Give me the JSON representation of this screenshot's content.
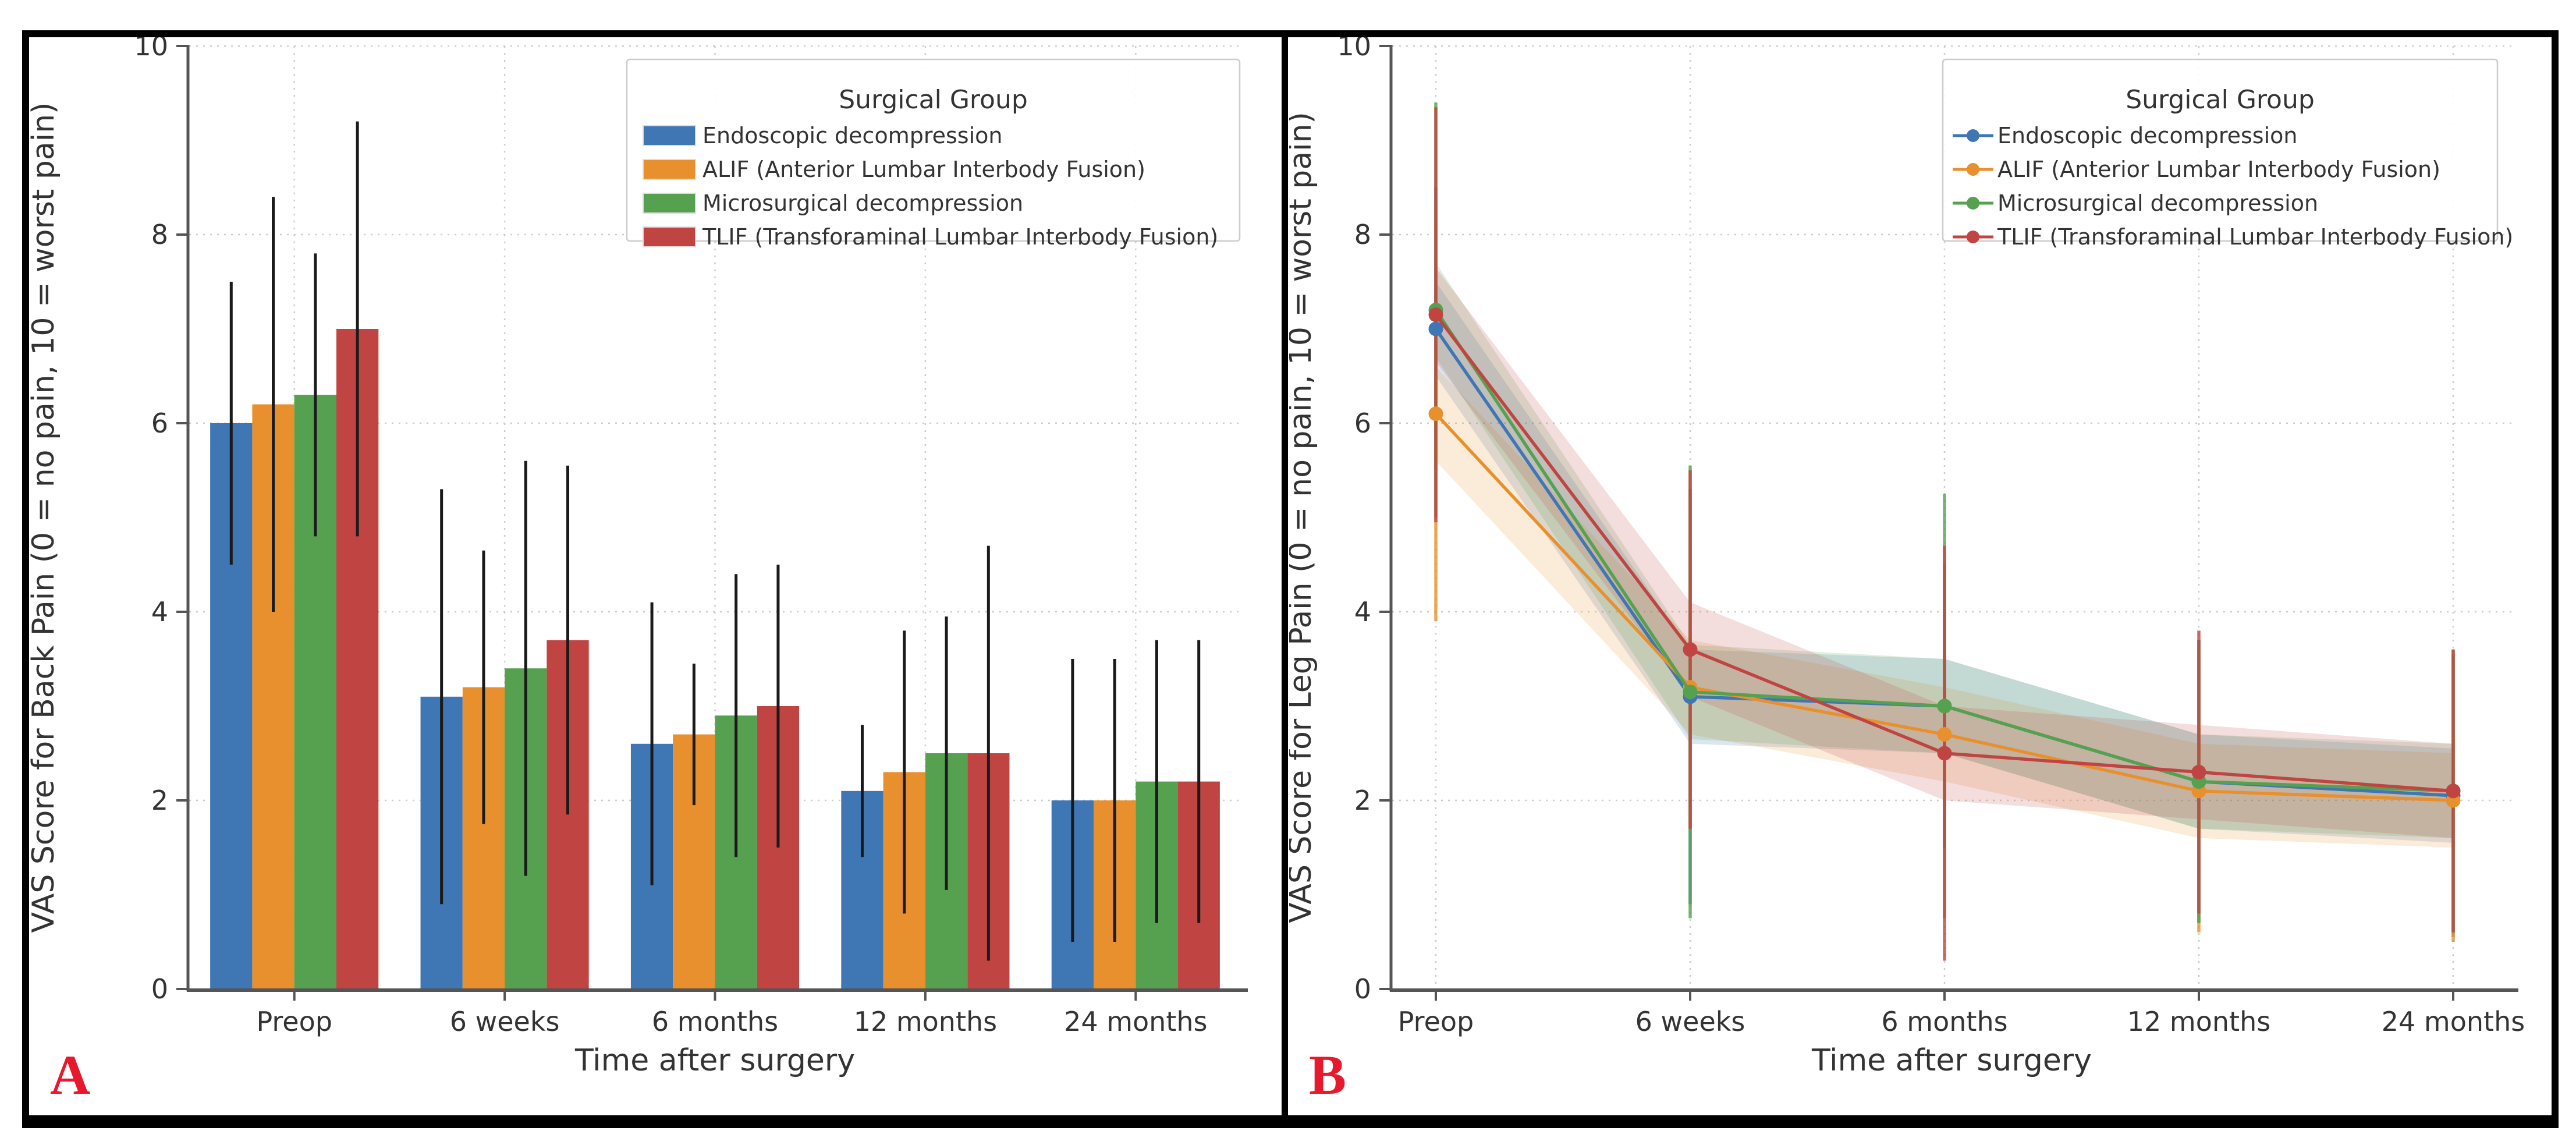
{
  "style": {
    "background": "#ffffff",
    "frame_border_color": "#000000",
    "axis_color": "#555555",
    "grid_color": "#cccccc",
    "text_color": "#333333",
    "error_bar_color_panel_a": "#1a1a1a",
    "legend_border_color": "#cccccc",
    "panel_letter_color": "#e8192c"
  },
  "chart_data": [
    {
      "panel_letter": "A",
      "type": "bar",
      "title": "",
      "legend_title": "Surgical Group",
      "legend_position": "upper right",
      "xlabel": "Time after surgery",
      "ylabel": "VAS Score for Back Pain (0 = no pain, 10 = worst pain)",
      "categories": [
        "Preop",
        "6 weeks",
        "6 months",
        "12 months",
        "24 months"
      ],
      "ylim": [
        0,
        10
      ],
      "yticks": [
        0,
        2,
        4,
        6,
        8,
        10
      ],
      "grid": true,
      "series": [
        {
          "name": "Endoscopic decompression",
          "color": "#3f76b4",
          "values": [
            6.0,
            3.1,
            2.6,
            2.1,
            2.0
          ],
          "err": [
            1.5,
            2.2,
            1.5,
            0.7,
            1.5
          ]
        },
        {
          "name": "ALIF (Anterior Lumbar Interbody Fusion)",
          "color": "#e8902e",
          "values": [
            6.2,
            3.2,
            2.7,
            2.3,
            2.0
          ],
          "err": [
            2.2,
            1.45,
            0.75,
            1.5,
            1.5
          ]
        },
        {
          "name": "Microsurgical decompression",
          "color": "#55a14f",
          "values": [
            6.3,
            3.4,
            2.9,
            2.5,
            2.2
          ],
          "err": [
            1.5,
            2.2,
            1.5,
            1.45,
            1.5
          ]
        },
        {
          "name": "TLIF (Transforaminal Lumbar Interbody Fusion)",
          "color": "#c04442",
          "values": [
            7.0,
            3.7,
            3.0,
            2.5,
            2.2
          ],
          "err": [
            2.2,
            1.85,
            1.5,
            2.2,
            1.5
          ]
        }
      ]
    },
    {
      "panel_letter": "B",
      "type": "line",
      "title": "",
      "legend_title": "Surgical Group",
      "legend_position": "upper right",
      "xlabel": "Time after surgery",
      "ylabel": "VAS Score for Leg Pain (0 = no pain, 10 = worst pain)",
      "categories": [
        "Preop",
        "6 weeks",
        "6 months",
        "12 months",
        "24 months"
      ],
      "ylim": [
        0,
        10
      ],
      "yticks": [
        0,
        2,
        4,
        6,
        8,
        10
      ],
      "grid": true,
      "band_halfwidth": 0.5,
      "series": [
        {
          "name": "Endoscopic decompression",
          "color": "#3f76b4",
          "values": [
            7.0,
            3.1,
            3.0,
            2.2,
            2.05
          ],
          "err": [
            1.5,
            2.2,
            1.5,
            1.5,
            1.5
          ]
        },
        {
          "name": "ALIF (Anterior Lumbar Interbody Fusion)",
          "color": "#e8902e",
          "values": [
            6.1,
            3.2,
            2.7,
            2.1,
            2.0
          ],
          "err": [
            2.2,
            1.5,
            0.8,
            1.5,
            1.5
          ]
        },
        {
          "name": "Microsurgical decompression",
          "color": "#55a14f",
          "values": [
            7.2,
            3.15,
            3.0,
            2.2,
            2.1
          ],
          "err": [
            2.2,
            2.4,
            2.25,
            1.5,
            1.5
          ]
        },
        {
          "name": "TLIF (Transforaminal Lumbar Interbody Fusion)",
          "color": "#c04442",
          "values": [
            7.15,
            3.6,
            2.5,
            2.3,
            2.1
          ],
          "err": [
            2.2,
            1.9,
            2.2,
            1.5,
            1.5
          ]
        }
      ]
    }
  ]
}
